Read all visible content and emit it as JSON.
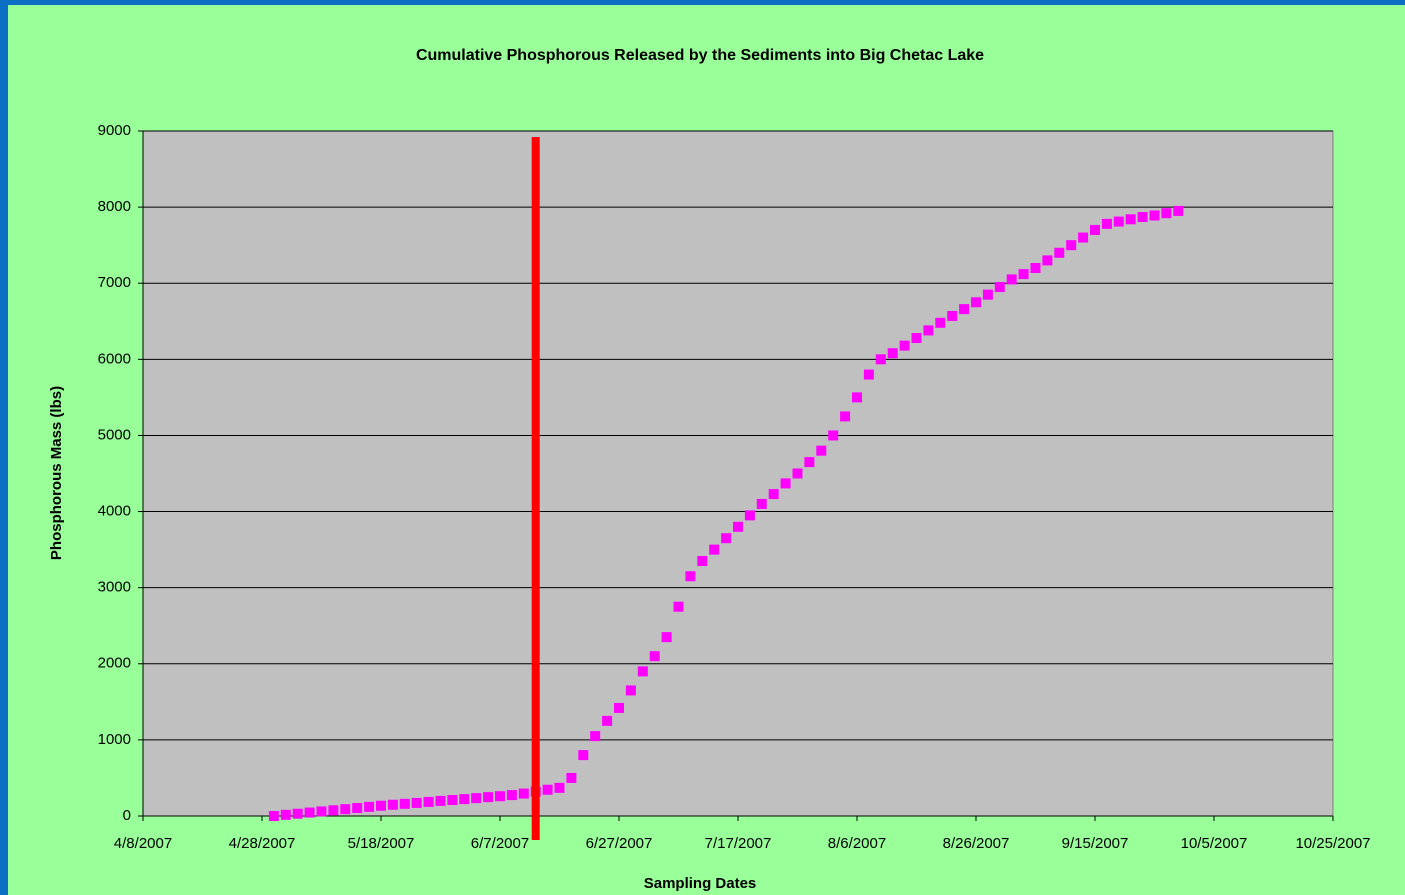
{
  "chart_data": {
    "type": "scatter",
    "title": "Cumulative Phosphorous Released by the Sediments into Big Chetac Lake",
    "x_label": "Sampling Dates",
    "y_label": "Phosphorous Mass (lbs)",
    "xlim": [
      "4/8/2007",
      "10/25/2007"
    ],
    "xticks": [
      "4/8/2007",
      "4/28/2007",
      "5/18/2007",
      "6/7/2007",
      "6/27/2007",
      "7/17/2007",
      "8/6/2007",
      "8/26/2007",
      "9/15/2007",
      "10/5/2007",
      "10/25/2007"
    ],
    "ylim": [
      0,
      9000
    ],
    "yticks": [
      0,
      1000,
      2000,
      3000,
      4000,
      5000,
      6000,
      7000,
      8000,
      9000
    ],
    "grid": true,
    "x": [
      "4/30/2007",
      "5/2/2007",
      "5/4/2007",
      "5/6/2007",
      "5/8/2007",
      "5/10/2007",
      "5/12/2007",
      "5/14/2007",
      "5/16/2007",
      "5/18/2007",
      "5/20/2007",
      "5/22/2007",
      "5/24/2007",
      "5/26/2007",
      "5/28/2007",
      "5/30/2007",
      "6/1/2007",
      "6/3/2007",
      "6/5/2007",
      "6/7/2007",
      "6/9/2007",
      "6/11/2007",
      "6/13/2007",
      "6/15/2007",
      "6/17/2007",
      "6/19/2007",
      "6/21/2007",
      "6/23/2007",
      "6/25/2007",
      "6/27/2007",
      "6/29/2007",
      "7/1/2007",
      "7/3/2007",
      "7/5/2007",
      "7/7/2007",
      "7/9/2007",
      "7/11/2007",
      "7/13/2007",
      "7/15/2007",
      "7/17/2007",
      "7/19/2007",
      "7/21/2007",
      "7/23/2007",
      "7/25/2007",
      "7/27/2007",
      "7/29/2007",
      "7/31/2007",
      "8/2/2007",
      "8/4/2007",
      "8/6/2007",
      "8/8/2007",
      "8/10/2007",
      "8/12/2007",
      "8/14/2007",
      "8/16/2007",
      "8/18/2007",
      "8/20/2007",
      "8/22/2007",
      "8/24/2007",
      "8/26/2007",
      "8/28/2007",
      "8/30/2007",
      "9/1/2007",
      "9/3/2007",
      "9/5/2007",
      "9/7/2007",
      "9/9/2007",
      "9/11/2007",
      "9/13/2007",
      "9/15/2007",
      "9/17/2007",
      "9/19/2007",
      "9/21/2007",
      "9/23/2007",
      "9/25/2007",
      "9/27/2007",
      "9/29/2007"
    ],
    "series": [
      {
        "color": "#ff00ff",
        "values": [
          0,
          15,
          30,
          45,
          60,
          75,
          90,
          105,
          120,
          135,
          148,
          160,
          172,
          185,
          198,
          210,
          222,
          235,
          248,
          260,
          275,
          295,
          320,
          345,
          370,
          500,
          800,
          1050,
          1250,
          1420,
          1650,
          1900,
          2100,
          2350,
          2750,
          3150,
          3350,
          3500,
          3650,
          3800,
          3950,
          4100,
          4230,
          4370,
          4500,
          4650,
          4800,
          5000,
          5250,
          5500,
          5800,
          6000,
          6080,
          6180,
          6280,
          6380,
          6480,
          6570,
          6660,
          6750,
          6850,
          6950,
          7050,
          7120,
          7200,
          7300,
          7400,
          7500,
          7600,
          7700,
          7780,
          7810,
          7840,
          7870,
          7890,
          7920,
          7950
        ]
      }
    ],
    "vline": {
      "x": "6/13/2007",
      "color": "#ff0000"
    }
  }
}
